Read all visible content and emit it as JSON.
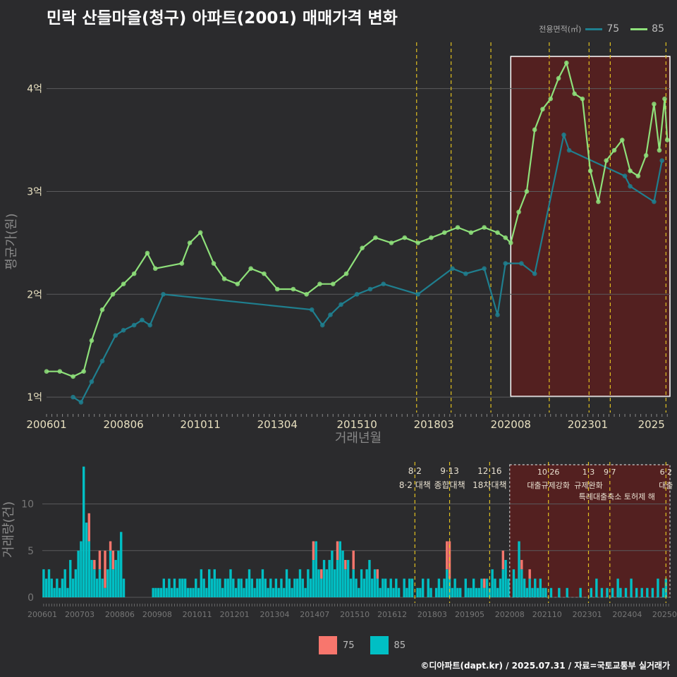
{
  "title": "민락 산들마을(청구) 아파트(2001) 매매가격 변화",
  "credit": "©디아파트(dapt.kr) / 2025.07.31 / 자료=국토교통부 실거래가",
  "colors": {
    "s75_price": "#1f7f8f",
    "s85_price": "#8ee07a",
    "s75_volume": "#f8766d",
    "s85_volume": "#00bfc4",
    "policy": "#e0c020",
    "highlight": "#5a1e1e"
  },
  "price_legend": {
    "title": "전용면적(㎡)",
    "items": [
      {
        "label": "75"
      },
      {
        "label": "85"
      }
    ]
  },
  "volume_legend": {
    "items": [
      {
        "label": "75"
      },
      {
        "label": "85"
      }
    ]
  },
  "chart_data": [
    {
      "type": "line",
      "xlabel": "거래년월",
      "ylabel": "평균가(원)",
      "ylim": [
        0.85,
        4.45
      ],
      "y_ticks": [
        1,
        2,
        3,
        4
      ],
      "y_tick_labels": [
        "1억",
        "2억",
        "3억",
        "4억"
      ],
      "x_ticks": [
        "200601",
        "200806",
        "201011",
        "201304",
        "201510",
        "201803",
        "202008",
        "202301",
        "2025"
      ],
      "highlight_range": [
        "2020-08",
        "2025-07"
      ],
      "policy_lines": [
        "2017-08",
        "2018-09",
        "2019-12",
        "2021-10",
        "2023-01",
        "2023-09",
        "2025-06"
      ],
      "series": [
        {
          "name": "75",
          "points": [
            [
              "2006-11",
              1.0
            ],
            [
              "2007-02",
              0.95
            ],
            [
              "2007-06",
              1.15
            ],
            [
              "2007-10",
              1.35
            ],
            [
              "2008-03",
              1.6
            ],
            [
              "2008-06",
              1.65
            ],
            [
              "2008-10",
              1.7
            ],
            [
              "2009-01",
              1.75
            ],
            [
              "2009-04",
              1.7
            ],
            [
              "2009-09",
              2.0
            ],
            [
              "2014-05",
              1.85
            ],
            [
              "2014-09",
              1.7
            ],
            [
              "2014-12",
              1.8
            ],
            [
              "2015-04",
              1.9
            ],
            [
              "2015-10",
              2.0
            ],
            [
              "2016-03",
              2.05
            ],
            [
              "2016-08",
              2.1
            ],
            [
              "2017-09",
              2.0
            ],
            [
              "2018-10",
              2.25
            ],
            [
              "2019-03",
              2.2
            ],
            [
              "2019-10",
              2.25
            ],
            [
              "2020-03",
              1.8
            ],
            [
              "2020-06",
              2.3
            ],
            [
              "2020-12",
              2.3
            ],
            [
              "2021-05",
              2.2
            ],
            [
              "2022-04",
              3.55
            ],
            [
              "2022-06",
              3.4
            ],
            [
              "2024-03",
              3.15
            ],
            [
              "2024-05",
              3.05
            ],
            [
              "2025-02",
              2.9
            ],
            [
              "2025-05",
              3.3
            ]
          ]
        },
        {
          "name": "85",
          "points": [
            [
              "2006-01",
              1.25
            ],
            [
              "2006-06",
              1.25
            ],
            [
              "2006-11",
              1.2
            ],
            [
              "2007-03",
              1.25
            ],
            [
              "2007-06",
              1.55
            ],
            [
              "2007-10",
              1.85
            ],
            [
              "2008-02",
              2.0
            ],
            [
              "2008-06",
              2.1
            ],
            [
              "2008-10",
              2.2
            ],
            [
              "2009-03",
              2.4
            ],
            [
              "2009-06",
              2.25
            ],
            [
              "2010-04",
              2.3
            ],
            [
              "2010-07",
              2.5
            ],
            [
              "2010-11",
              2.6
            ],
            [
              "2011-04",
              2.3
            ],
            [
              "2011-08",
              2.15
            ],
            [
              "2012-01",
              2.1
            ],
            [
              "2012-06",
              2.25
            ],
            [
              "2012-11",
              2.2
            ],
            [
              "2013-04",
              2.05
            ],
            [
              "2013-10",
              2.05
            ],
            [
              "2014-03",
              2.0
            ],
            [
              "2014-08",
              2.1
            ],
            [
              "2015-01",
              2.1
            ],
            [
              "2015-06",
              2.2
            ],
            [
              "2015-12",
              2.45
            ],
            [
              "2016-05",
              2.55
            ],
            [
              "2016-11",
              2.5
            ],
            [
              "2017-04",
              2.55
            ],
            [
              "2017-09",
              2.5
            ],
            [
              "2018-02",
              2.55
            ],
            [
              "2018-07",
              2.6
            ],
            [
              "2018-12",
              2.65
            ],
            [
              "2019-05",
              2.6
            ],
            [
              "2019-10",
              2.65
            ],
            [
              "2020-03",
              2.6
            ],
            [
              "2020-06",
              2.55
            ],
            [
              "2020-08",
              2.5
            ],
            [
              "2020-11",
              2.8
            ],
            [
              "2021-02",
              3.0
            ],
            [
              "2021-05",
              3.6
            ],
            [
              "2021-08",
              3.8
            ],
            [
              "2021-11",
              3.9
            ],
            [
              "2022-02",
              4.1
            ],
            [
              "2022-05",
              4.25
            ],
            [
              "2022-08",
              3.95
            ],
            [
              "2022-11",
              3.9
            ],
            [
              "2023-02",
              3.2
            ],
            [
              "2023-05",
              2.9
            ],
            [
              "2023-08",
              3.3
            ],
            [
              "2023-11",
              3.4
            ],
            [
              "2024-02",
              3.5
            ],
            [
              "2024-05",
              3.2
            ],
            [
              "2024-08",
              3.15
            ],
            [
              "2024-11",
              3.35
            ],
            [
              "2025-02",
              3.85
            ],
            [
              "2025-04",
              3.4
            ],
            [
              "2025-06",
              3.9
            ],
            [
              "2025-07",
              3.5
            ]
          ]
        }
      ]
    },
    {
      "type": "bar",
      "xlabel": "",
      "ylabel": "거래량(건)",
      "ylim": [
        0,
        14.5
      ],
      "y_ticks": [
        0,
        5,
        10
      ],
      "y_tick_labels": [
        "0",
        "5",
        "10"
      ],
      "x_ticks": [
        "200601",
        "200703",
        "200806",
        "200908",
        "201011",
        "201201",
        "201304",
        "201407",
        "201510",
        "201612",
        "201803",
        "201905",
        "202008",
        "202110",
        "202301",
        "202404",
        "202506"
      ],
      "x_tick_labels": [
        "200601",
        "200703",
        "200806",
        "200908",
        "201011",
        "201201",
        "201304",
        "201407",
        "201510",
        "201612",
        "201803",
        "201905",
        "202008",
        "202110",
        "202301",
        "202404",
        "20250"
      ],
      "highlight_range": [
        "2020-08",
        "2025-07"
      ],
      "policy_annotations": [
        {
          "month": "2017-08",
          "date": "8·2",
          "label": "8·2 대책",
          "label2": ""
        },
        {
          "month": "2018-09",
          "date": "9·13",
          "label": "종합대책",
          "label2": ""
        },
        {
          "month": "2019-12",
          "date": "12·16",
          "label": "18차대책",
          "label2": ""
        },
        {
          "month": "2021-10",
          "date": "10·26",
          "label": "대출규제강화",
          "label2": ""
        },
        {
          "month": "2023-01",
          "date": "1·3",
          "label": "규제완화",
          "label2": ""
        },
        {
          "month": "2023-09",
          "date": "9·7",
          "label": "",
          "label2": "특례대출축소 토허제 해"
        },
        {
          "month": "2025-06",
          "date": "6·2",
          "label": "대출",
          "label2": ""
        }
      ],
      "series": [
        {
          "name": "75",
          "values_by_month": {
            "2007-06": 3,
            "2007-08": 1,
            "2007-10": 2,
            "2007-12": 4,
            "2008-02": 1,
            "2008-03": 2,
            "2014-06": 2,
            "2014-09": 1,
            "2015-03": 2,
            "2015-06": 1,
            "2015-09": 2,
            "2016-06": 1,
            "2018-08": 3,
            "2018-09": 4,
            "2019-10": 1,
            "2020-05": 2,
            "2020-12": 1,
            "2021-03": 1
          }
        },
        {
          "name": "85",
          "values_by_month": {
            "2006-01": 3,
            "2006-02": 2,
            "2006-03": 3,
            "2006-04": 2,
            "2006-05": 1,
            "2006-06": 2,
            "2006-07": 1,
            "2006-08": 2,
            "2006-09": 3,
            "2006-10": 1,
            "2006-11": 4,
            "2006-12": 2,
            "2007-01": 3,
            "2007-02": 5,
            "2007-03": 6,
            "2007-04": 14,
            "2007-05": 8,
            "2007-06": 6,
            "2007-07": 4,
            "2007-08": 3,
            "2007-09": 2,
            "2007-10": 3,
            "2007-11": 2,
            "2007-12": 1,
            "2008-01": 3,
            "2008-02": 5,
            "2008-03": 3,
            "2008-04": 4,
            "2008-05": 5,
            "2008-06": 7,
            "2008-07": 2,
            "2009-06": 1,
            "2009-07": 1,
            "2009-08": 1,
            "2009-09": 1,
            "2009-10": 2,
            "2009-11": 1,
            "2009-12": 2,
            "2010-01": 1,
            "2010-02": 2,
            "2010-03": 1,
            "2010-04": 2,
            "2010-05": 2,
            "2010-06": 2,
            "2010-07": 1,
            "2010-08": 1,
            "2010-09": 1,
            "2010-10": 2,
            "2010-11": 1,
            "2010-12": 3,
            "2011-01": 2,
            "2011-02": 1,
            "2011-03": 3,
            "2011-04": 2,
            "2011-05": 3,
            "2011-06": 2,
            "2011-07": 2,
            "2011-08": 1,
            "2011-09": 2,
            "2011-10": 2,
            "2011-11": 3,
            "2011-12": 2,
            "2012-01": 1,
            "2012-02": 2,
            "2012-03": 2,
            "2012-04": 1,
            "2012-05": 2,
            "2012-06": 3,
            "2012-07": 2,
            "2012-08": 1,
            "2012-09": 2,
            "2012-10": 2,
            "2012-11": 3,
            "2012-12": 2,
            "2013-01": 1,
            "2013-02": 2,
            "2013-03": 1,
            "2013-04": 2,
            "2013-05": 1,
            "2013-06": 2,
            "2013-07": 1,
            "2013-08": 3,
            "2013-09": 2,
            "2013-10": 1,
            "2013-11": 2,
            "2013-12": 2,
            "2014-01": 3,
            "2014-02": 2,
            "2014-03": 1,
            "2014-04": 3,
            "2014-05": 2,
            "2014-06": 4,
            "2014-07": 6,
            "2014-08": 3,
            "2014-09": 2,
            "2014-10": 4,
            "2014-11": 3,
            "2014-12": 4,
            "2015-01": 5,
            "2015-02": 3,
            "2015-03": 4,
            "2015-04": 6,
            "2015-05": 5,
            "2015-06": 3,
            "2015-07": 4,
            "2015-08": 2,
            "2015-09": 3,
            "2015-10": 2,
            "2015-11": 1,
            "2015-12": 3,
            "2016-01": 2,
            "2016-02": 3,
            "2016-03": 4,
            "2016-04": 2,
            "2016-05": 3,
            "2016-06": 2,
            "2016-07": 1,
            "2016-08": 2,
            "2016-09": 2,
            "2016-10": 1,
            "2016-11": 2,
            "2016-12": 1,
            "2017-01": 2,
            "2017-02": 1,
            "2017-04": 2,
            "2017-05": 1,
            "2017-06": 2,
            "2017-07": 2,
            "2017-09": 1,
            "2017-10": 1,
            "2017-11": 2,
            "2018-01": 2,
            "2018-02": 1,
            "2018-04": 1,
            "2018-05": 2,
            "2018-06": 1,
            "2018-07": 2,
            "2018-08": 3,
            "2018-09": 2,
            "2018-10": 1,
            "2018-11": 2,
            "2018-12": 1,
            "2019-01": 1,
            "2019-03": 2,
            "2019-04": 1,
            "2019-05": 1,
            "2019-06": 2,
            "2019-07": 1,
            "2019-08": 1,
            "2019-09": 2,
            "2019-10": 1,
            "2019-11": 2,
            "2019-12": 1,
            "2020-01": 3,
            "2020-02": 2,
            "2020-03": 1,
            "2020-04": 2,
            "2020-05": 3,
            "2020-06": 4,
            "2020-07": 2,
            "2020-09": 3,
            "2020-10": 2,
            "2020-11": 6,
            "2020-12": 3,
            "2021-01": 2,
            "2021-02": 1,
            "2021-03": 2,
            "2021-04": 1,
            "2021-05": 2,
            "2021-06": 1,
            "2021-07": 2,
            "2021-08": 1,
            "2021-09": 1,
            "2021-11": 1,
            "2022-02": 1,
            "2022-05": 1,
            "2022-10": 1,
            "2023-02": 1,
            "2023-04": 2,
            "2023-06": 1,
            "2023-08": 1,
            "2023-10": 1,
            "2023-12": 2,
            "2024-01": 1,
            "2024-03": 1,
            "2024-05": 2,
            "2024-07": 1,
            "2024-09": 1,
            "2024-11": 1,
            "2025-01": 1,
            "2025-03": 2,
            "2025-05": 1,
            "2025-06": 2
          }
        }
      ]
    }
  ]
}
